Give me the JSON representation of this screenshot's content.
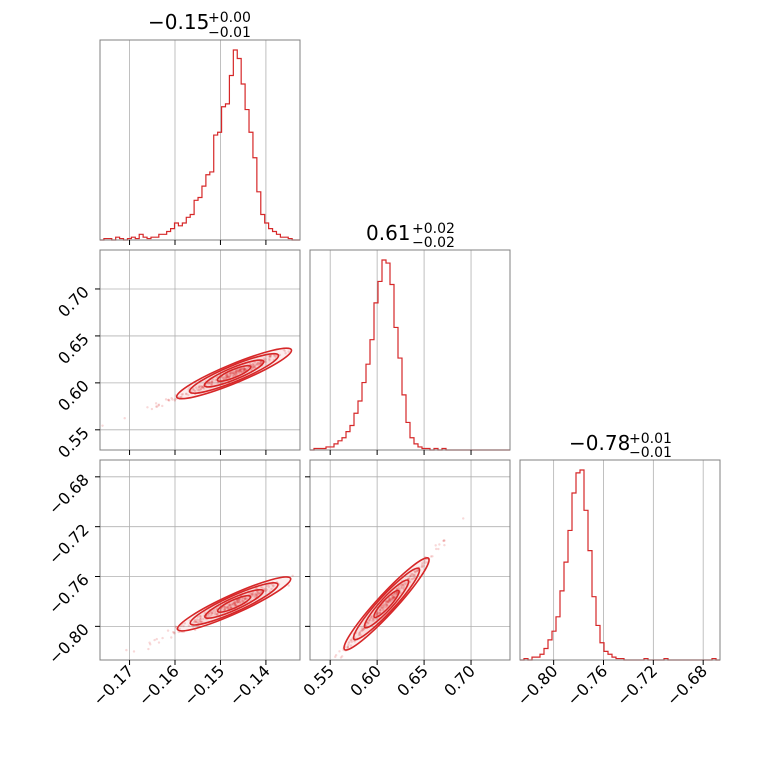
{
  "chart_data": {
    "type": "corner",
    "colors": {
      "series": "#d62728",
      "frame": "#808080",
      "grid": "#b0b0b0"
    },
    "params": [
      {
        "median": "−0.15",
        "plus": "+0.00",
        "minus": "−0.01",
        "range": [
          -0.1765,
          -0.1325
        ],
        "ticks": [
          -0.17,
          -0.16,
          -0.15,
          -0.14
        ],
        "tick_labels": [
          "−0.17",
          "−0.16",
          "−0.15",
          "−0.14"
        ]
      },
      {
        "median": "0.61",
        "plus": "+0.02",
        "minus": "−0.02",
        "range": [
          0.5285,
          0.7415
        ],
        "ticks": [
          0.55,
          0.6,
          0.65,
          0.7
        ],
        "tick_labels": [
          "0.55",
          "0.60",
          "0.65",
          "0.70"
        ]
      },
      {
        "median": "−0.78",
        "plus": "+0.01",
        "minus": "−0.01",
        "range": [
          -0.827,
          -0.6665
        ],
        "ticks": [
          -0.8,
          -0.76,
          -0.72,
          -0.68
        ],
        "tick_labels": [
          "−0.80",
          "−0.76",
          "−0.72",
          "−0.68"
        ]
      }
    ],
    "histograms": [
      {
        "param": 0,
        "bin_start": -0.1765,
        "bin_width": 0.00088,
        "counts": [
          0,
          0.5,
          0.5,
          0,
          1,
          0.5,
          0,
          0.5,
          1,
          0.5,
          2,
          1,
          0.5,
          1,
          1,
          2,
          2,
          3,
          4,
          6,
          5,
          6,
          8,
          9,
          14,
          15,
          19,
          23,
          24,
          37,
          38,
          47,
          48,
          58,
          67,
          64,
          55,
          46,
          38,
          29,
          17,
          9,
          6,
          4,
          3,
          2,
          1,
          1,
          0.5,
          0,
          0
        ]
      },
      {
        "param": 1,
        "bin_start": 0.5285,
        "bin_width": 0.00426,
        "counts": [
          0,
          0.5,
          0.5,
          0.5,
          1,
          1,
          2,
          3,
          4,
          6,
          8,
          12,
          16,
          22,
          28,
          36,
          48,
          55,
          62,
          61,
          54,
          40,
          30,
          18,
          9,
          4,
          2,
          1,
          0.5,
          0.5,
          0,
          0.5,
          0,
          0.5,
          0,
          0,
          0,
          0,
          0,
          0,
          0,
          0,
          0,
          0,
          0,
          0,
          0,
          0,
          0,
          0
        ]
      },
      {
        "param": 2,
        "bin_start": -0.827,
        "bin_width": 0.00321,
        "counts": [
          0,
          0.5,
          0,
          1,
          1,
          2,
          4,
          7,
          10,
          15,
          24,
          34,
          45,
          58,
          65,
          66,
          52,
          38,
          22,
          12,
          6,
          3,
          2,
          1,
          0.5,
          0.5,
          0,
          0,
          0,
          0,
          0,
          0.5,
          0,
          0,
          0,
          0,
          0.5,
          0,
          0,
          0,
          0,
          0,
          0,
          0,
          0,
          0,
          0,
          0,
          0.5,
          0
        ]
      }
    ],
    "pairs": [
      {
        "x_param": 0,
        "y_param": 1,
        "slope": 2.0,
        "x_center": -0.147,
        "y_center": 0.61
      },
      {
        "x_param": 0,
        "y_param": 2,
        "slope": 1.65,
        "x_center": -0.147,
        "y_center": -0.782
      },
      {
        "x_param": 1,
        "y_param": 2,
        "slope": 0.82,
        "x_center": 0.61,
        "y_center": -0.782
      }
    ]
  }
}
